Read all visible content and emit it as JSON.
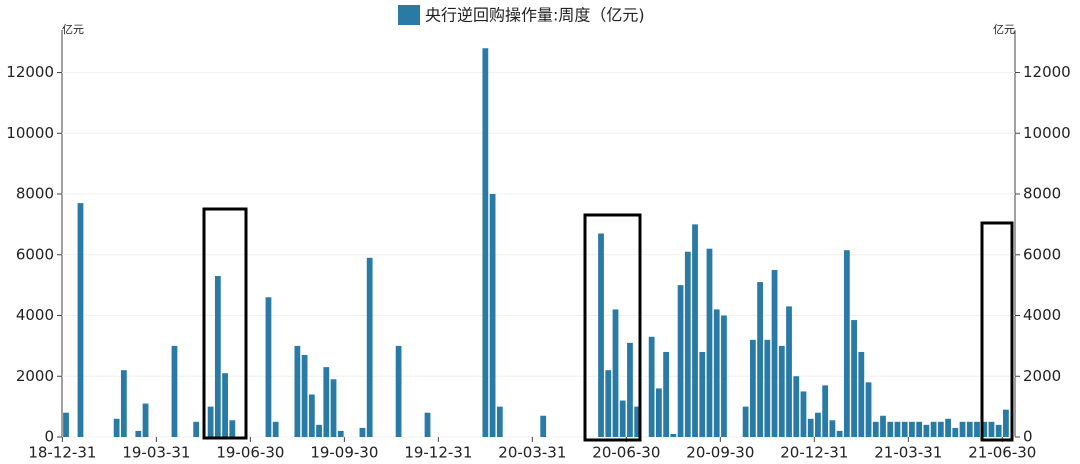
{
  "chart_data": {
    "type": "bar",
    "legend": "央行逆回购操作量:周度（亿元)",
    "y_unit": "亿元",
    "y2_unit": "亿元",
    "color": "#2a7aa6",
    "categories": [
      "18-12-31",
      null,
      null,
      null,
      null,
      null,
      null,
      null,
      null,
      null,
      null,
      null,
      null,
      "19-03-31",
      null,
      null,
      null,
      null,
      null,
      null,
      null,
      null,
      null,
      null,
      null,
      null,
      "19-06-30",
      null,
      null,
      null,
      null,
      null,
      null,
      null,
      null,
      null,
      null,
      null,
      null,
      "19-09-30",
      null,
      null,
      null,
      null,
      null,
      null,
      null,
      null,
      null,
      null,
      null,
      null,
      "19-12-31",
      null,
      null,
      null,
      null,
      null,
      null,
      null,
      null,
      null,
      null,
      null,
      null,
      "20-03-31",
      null,
      null,
      null,
      null,
      null,
      null,
      null,
      null,
      null,
      null,
      null,
      null,
      "20-06-30",
      null,
      null,
      null,
      null,
      null,
      null,
      null,
      null,
      null,
      null,
      null,
      null,
      "20-09-30",
      null,
      null,
      null,
      null,
      null,
      null,
      null,
      null,
      null,
      null,
      null,
      null,
      "20-12-31",
      null,
      null,
      null,
      null,
      null,
      null,
      null,
      null,
      null,
      null,
      null,
      null,
      "21-03-31",
      null,
      null,
      null,
      null,
      null,
      null,
      null,
      null,
      null,
      null,
      null,
      null,
      "21-06-30"
    ],
    "values": [
      800,
      0,
      7700,
      0,
      0,
      0,
      0,
      600,
      2200,
      0,
      200,
      1100,
      0,
      0,
      0,
      3000,
      0,
      0,
      500,
      0,
      1000,
      5300,
      2100,
      550,
      0,
      0,
      0,
      0,
      4600,
      500,
      0,
      0,
      3000,
      2700,
      1400,
      400,
      2300,
      1900,
      200,
      0,
      0,
      300,
      5900,
      0,
      0,
      0,
      3000,
      0,
      0,
      0,
      800,
      0,
      0,
      0,
      0,
      0,
      0,
      0,
      12800,
      8000,
      1000,
      0,
      0,
      0,
      0,
      0,
      700,
      0,
      0,
      0,
      0,
      0,
      0,
      0,
      6700,
      2200,
      4200,
      1200,
      3100,
      1000,
      0,
      3300,
      1600,
      2800,
      100,
      5000,
      6100,
      7000,
      2800,
      6200,
      4200,
      4000,
      0,
      0,
      1000,
      3200,
      5100,
      3200,
      5500,
      3000,
      4300,
      2000,
      1500,
      600,
      800,
      1700,
      550,
      200,
      6150,
      3850,
      2800,
      1800,
      500,
      700,
      500,
      500,
      500,
      500,
      500,
      400,
      500,
      500,
      600,
      300,
      500,
      500,
      500,
      500,
      500,
      400,
      900
    ],
    "ylim": [
      0,
      13400
    ],
    "yticks": [
      0,
      2000,
      4000,
      6000,
      8000,
      10000,
      12000
    ],
    "y2lim": [
      0,
      13400
    ],
    "y2ticks": [
      0,
      2000,
      4000,
      6000,
      8000,
      10000,
      12000
    ],
    "grid": true
  }
}
